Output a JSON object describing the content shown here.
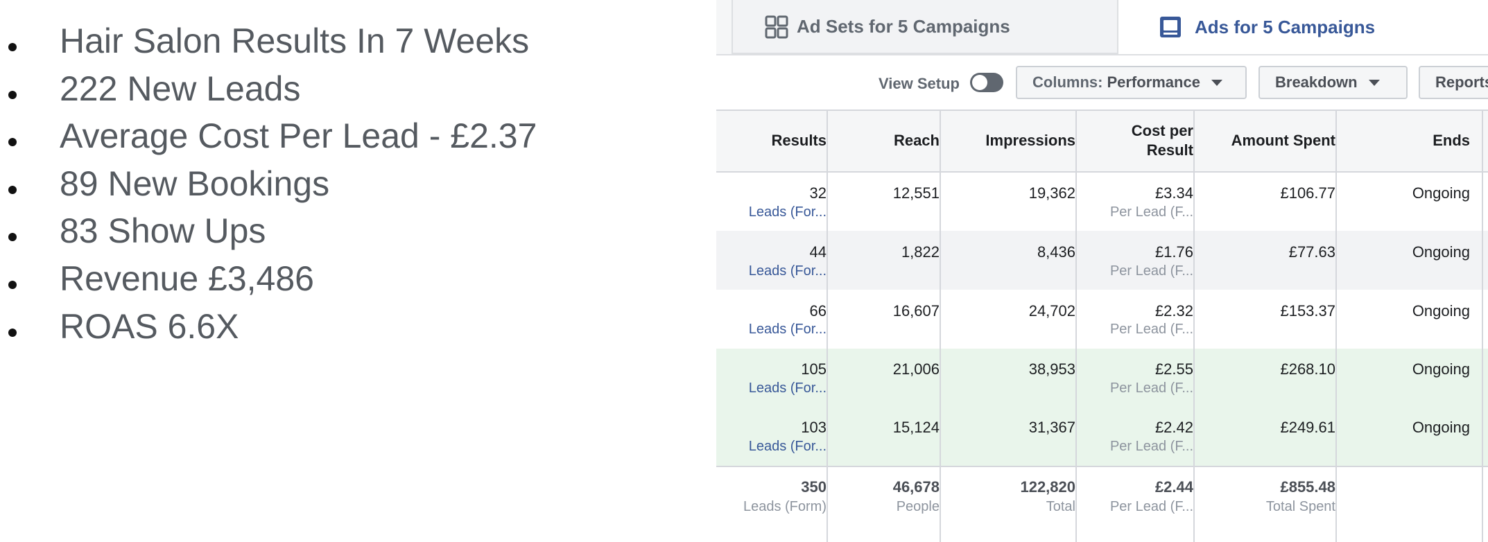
{
  "bullets": [
    "Hair Salon Results In 7 Weeks",
    "222 New Leads",
    "Average Cost Per Lead - £2.37",
    "89 New Bookings",
    "83 Show Ups",
    "Revenue £3,486",
    "ROAS 6.6X"
  ],
  "tabs": {
    "adsets_label": "Ad Sets for 5 Campaigns",
    "ads_label": "Ads for 5 Campaigns"
  },
  "toolbar": {
    "view_setup": "View Setup",
    "columns_prefix": "Columns:",
    "columns_value": "Performance",
    "breakdown": "Breakdown",
    "reports": "Reports"
  },
  "table": {
    "headers": {
      "results": "Results",
      "reach": "Reach",
      "impressions": "Impressions",
      "cost_per_result_1": "Cost per",
      "cost_per_result_2": "Result",
      "amount_spent": "Amount Spent",
      "ends": "Ends"
    },
    "rows": [
      {
        "results": "32",
        "results_sub": "Leads (For...",
        "reach": "12,551",
        "impressions": "19,362",
        "cpr": "£3.34",
        "cpr_sub": "Per Lead (F...",
        "spent": "£106.77",
        "ends": "Ongoing"
      },
      {
        "results": "44",
        "results_sub": "Leads (For...",
        "reach": "1,822",
        "impressions": "8,436",
        "cpr": "£1.76",
        "cpr_sub": "Per Lead (F...",
        "spent": "£77.63",
        "ends": "Ongoing"
      },
      {
        "results": "66",
        "results_sub": "Leads (For...",
        "reach": "16,607",
        "impressions": "24,702",
        "cpr": "£2.32",
        "cpr_sub": "Per Lead (F...",
        "spent": "£153.37",
        "ends": "Ongoing"
      },
      {
        "results": "105",
        "results_sub": "Leads (For...",
        "reach": "21,006",
        "impressions": "38,953",
        "cpr": "£2.55",
        "cpr_sub": "Per Lead (F...",
        "spent": "£268.10",
        "ends": "Ongoing"
      },
      {
        "results": "103",
        "results_sub": "Leads (For...",
        "reach": "15,124",
        "impressions": "31,367",
        "cpr": "£2.42",
        "cpr_sub": "Per Lead (F...",
        "spent": "£249.61",
        "ends": "Ongoing"
      }
    ],
    "totals": {
      "results": "350",
      "results_sub": "Leads (Form)",
      "reach": "46,678",
      "reach_sub": "People",
      "impressions": "122,820",
      "impressions_sub": "Total",
      "cpr": "£2.44",
      "cpr_sub": "Per Lead (F...",
      "spent": "£855.48",
      "spent_sub": "Total Spent"
    }
  },
  "colors": {
    "row_alt": "#f2f3f5",
    "row_highlight": "#e9f5eb",
    "link": "#385898"
  }
}
